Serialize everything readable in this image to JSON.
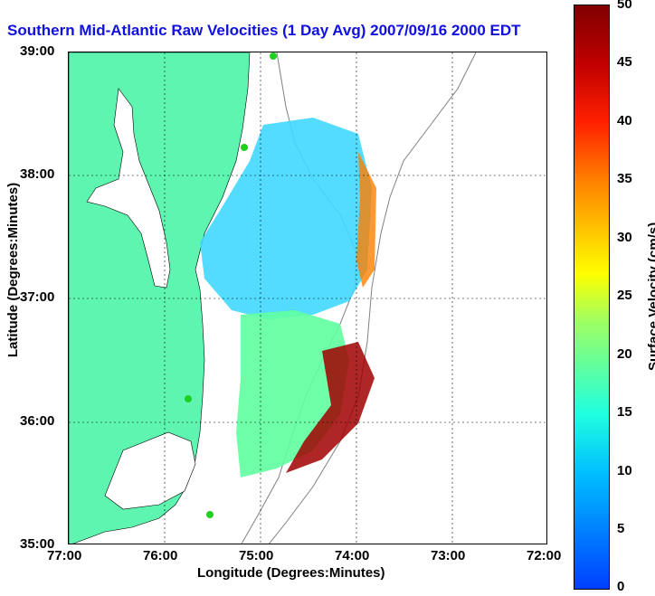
{
  "title": "Southern Mid-Atlantic Raw Velocities (1 Day Avg) 2007/09/16 2000 EDT",
  "x_axis": {
    "label": "Longitude (Degrees:Minutes)",
    "ticks": [
      "77:00",
      "76:00",
      "75:00",
      "74:00",
      "73:00",
      "72:00"
    ]
  },
  "y_axis": {
    "label": "Latitude (Degrees:Minutes)",
    "ticks": [
      "39:00",
      "38:00",
      "37:00",
      "36:00",
      "35:00"
    ]
  },
  "colorbar": {
    "label": "Surface Velocity (cm/s)",
    "ticks": [
      "50",
      "45",
      "40",
      "35",
      "30",
      "25",
      "20",
      "15",
      "10",
      "5",
      "0"
    ]
  },
  "colors": {
    "land": "#5ef5b0",
    "water": "#ffffff",
    "title": "#1010e0",
    "bathymetry": "#808080",
    "station": "#20d020"
  }
}
